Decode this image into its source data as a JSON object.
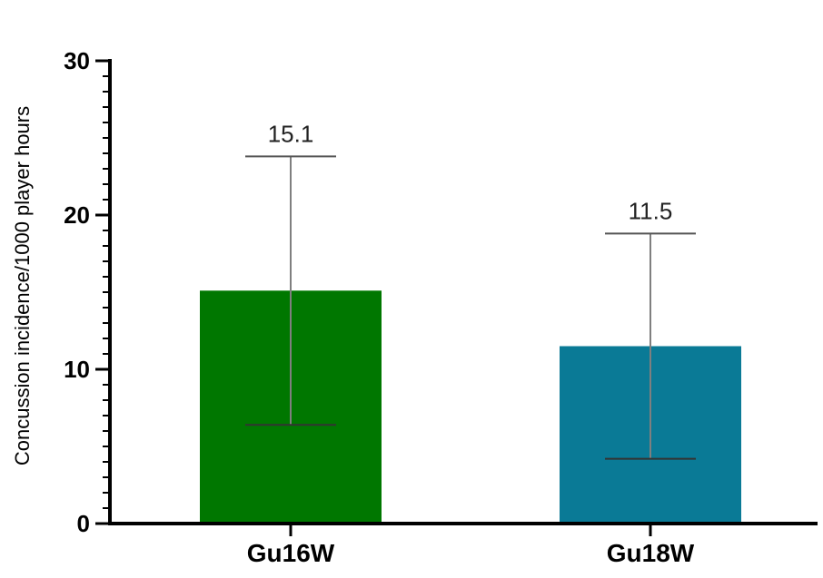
{
  "chart_data": {
    "type": "bar",
    "title": "",
    "xlabel": "",
    "ylabel": "Concussion incidence/1000 player hours",
    "ylim": [
      0,
      30
    ],
    "yticks": [
      0,
      10,
      20,
      30
    ],
    "minor_tick_step": 1,
    "grid": false,
    "categories": [
      "Gu16W",
      "Gu18W"
    ],
    "values": [
      15.1,
      11.5
    ],
    "data_labels": [
      "15.1",
      "11.5"
    ],
    "error_low": [
      6.4,
      4.2
    ],
    "error_high": [
      23.8,
      18.8
    ],
    "colors": [
      "#007700",
      "#0a7a96"
    ]
  }
}
